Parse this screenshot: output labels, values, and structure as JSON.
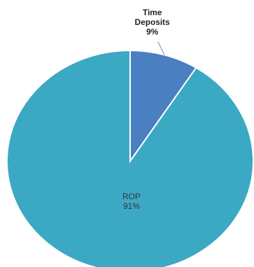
{
  "chart_data": {
    "type": "pie",
    "title": "",
    "slices": [
      {
        "label": "Time Deposits",
        "label_lines": [
          "Time",
          "Deposits"
        ],
        "value": 9,
        "value_label": "9%",
        "color": "#4a7fc1"
      },
      {
        "label": "ROP",
        "label_lines": [
          "ROP"
        ],
        "value": 91,
        "value_label": "91%",
        "color": "#3ba9c4"
      }
    ],
    "start_angle": "12 o'clock",
    "direction": "clockwise",
    "slice_border_color": "#ffffff",
    "leader_line_color": "#888888"
  }
}
